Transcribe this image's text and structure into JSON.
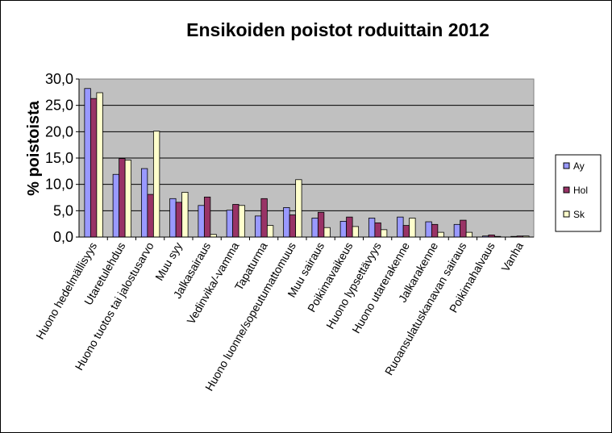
{
  "chart_data": {
    "type": "bar",
    "title": "Ensikoiden poistot roduittain 2012",
    "ylabel": "% poistoista",
    "xlabel": "",
    "ylim": [
      0,
      30
    ],
    "yticks": [
      "0,0",
      "5,0",
      "10,0",
      "15,0",
      "20,0",
      "25,0",
      "30,0"
    ],
    "grid": true,
    "legend_position": "right",
    "categories": [
      "Huono hedelmällisyys",
      "Utaretulehdus",
      "Huono tuotos tai jalostusarvo",
      "Muu syy",
      "Jalkasairaus",
      "Vedinvika/-vamma",
      "Tapaturma",
      "Huono luonne/sopeutumattomuus",
      "Muu sairaus",
      "Poikimavaikeus",
      "Huono lypsettävyys",
      "Huono utarerakenne",
      "Jalkarakenne",
      "Ruoansulatuskanavan sairaus",
      "Poikimahalvaus",
      "Vanha"
    ],
    "series": [
      {
        "name": "Ay",
        "color": "#9999ff",
        "values": [
          28.2,
          11.9,
          13.0,
          7.3,
          6.0,
          5.1,
          4.0,
          5.6,
          3.6,
          3.0,
          3.6,
          3.8,
          2.9,
          2.4,
          0.2,
          0.1
        ]
      },
      {
        "name": "Hol",
        "color": "#993366",
        "values": [
          26.3,
          14.9,
          8.1,
          6.6,
          7.6,
          6.2,
          7.3,
          4.2,
          4.7,
          3.8,
          2.7,
          2.2,
          2.4,
          3.2,
          0.4,
          0.2
        ]
      },
      {
        "name": "Sk",
        "color": "#ffffcc",
        "values": [
          27.4,
          14.6,
          20.1,
          8.5,
          0.5,
          6.0,
          2.2,
          10.9,
          1.8,
          2.0,
          1.4,
          3.6,
          0.9,
          0.9,
          0.1,
          0.2
        ]
      }
    ]
  }
}
